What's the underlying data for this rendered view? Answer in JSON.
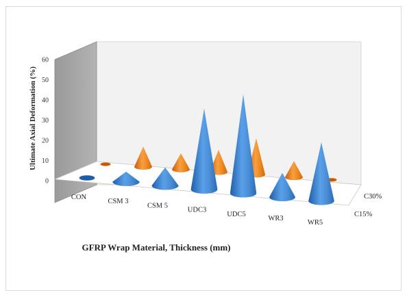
{
  "chart_data": {
    "type": "bar",
    "style": "3d-cone",
    "categories": [
      "CON",
      "CSM 3",
      "CSM 5",
      "UDC3",
      "UDC5",
      "WR3",
      "WR5"
    ],
    "series": [
      {
        "name": "C15%",
        "color": "#4a90d9",
        "values": [
          1,
          5,
          9,
          40,
          49,
          12,
          29
        ]
      },
      {
        "name": "C30%",
        "color": "#f08a24",
        "values": [
          1,
          10,
          8,
          11,
          18,
          8,
          2
        ]
      }
    ],
    "ylabel": "Ultimate Axial Deformation (%)",
    "xlabel": "GFRP Wrap Material, Thickness (mm)",
    "ylim": [
      0,
      60
    ],
    "yticks": [
      0,
      10,
      20,
      30,
      40,
      50,
      60
    ],
    "grid": false,
    "legend": "none"
  }
}
